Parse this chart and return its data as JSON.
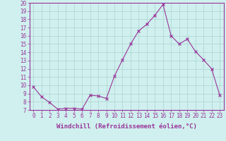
{
  "x": [
    0,
    1,
    2,
    3,
    4,
    5,
    6,
    7,
    8,
    9,
    10,
    11,
    12,
    13,
    14,
    15,
    16,
    17,
    18,
    19,
    20,
    21,
    22,
    23
  ],
  "y": [
    9.8,
    8.6,
    7.9,
    7.1,
    7.2,
    7.2,
    7.1,
    8.8,
    8.7,
    8.4,
    11.1,
    13.1,
    15.0,
    16.6,
    17.4,
    18.5,
    19.8,
    16.0,
    15.0,
    15.6,
    14.1,
    13.1,
    12.0,
    8.8
  ],
  "line_color": "#993399",
  "marker": "x",
  "marker_size": 3,
  "bg_color": "#cff0ee",
  "grid_color": "#b0d8d4",
  "xlabel": "Windchill (Refroidissement éolien,°C)",
  "xlim": [
    -0.5,
    23.5
  ],
  "ylim": [
    7,
    20
  ],
  "yticks": [
    7,
    8,
    9,
    10,
    11,
    12,
    13,
    14,
    15,
    16,
    17,
    18,
    19,
    20
  ],
  "xticks": [
    0,
    1,
    2,
    3,
    4,
    5,
    6,
    7,
    8,
    9,
    10,
    11,
    12,
    13,
    14,
    15,
    16,
    17,
    18,
    19,
    20,
    21,
    22,
    23
  ],
  "tick_label_fontsize": 5.5,
  "xlabel_fontsize": 6.5,
  "line_color2": "#993399",
  "tick_color": "#993399",
  "label_color": "#993399",
  "spine_color": "#993399",
  "linewidth": 0.8,
  "markeredgewidth": 0.8
}
